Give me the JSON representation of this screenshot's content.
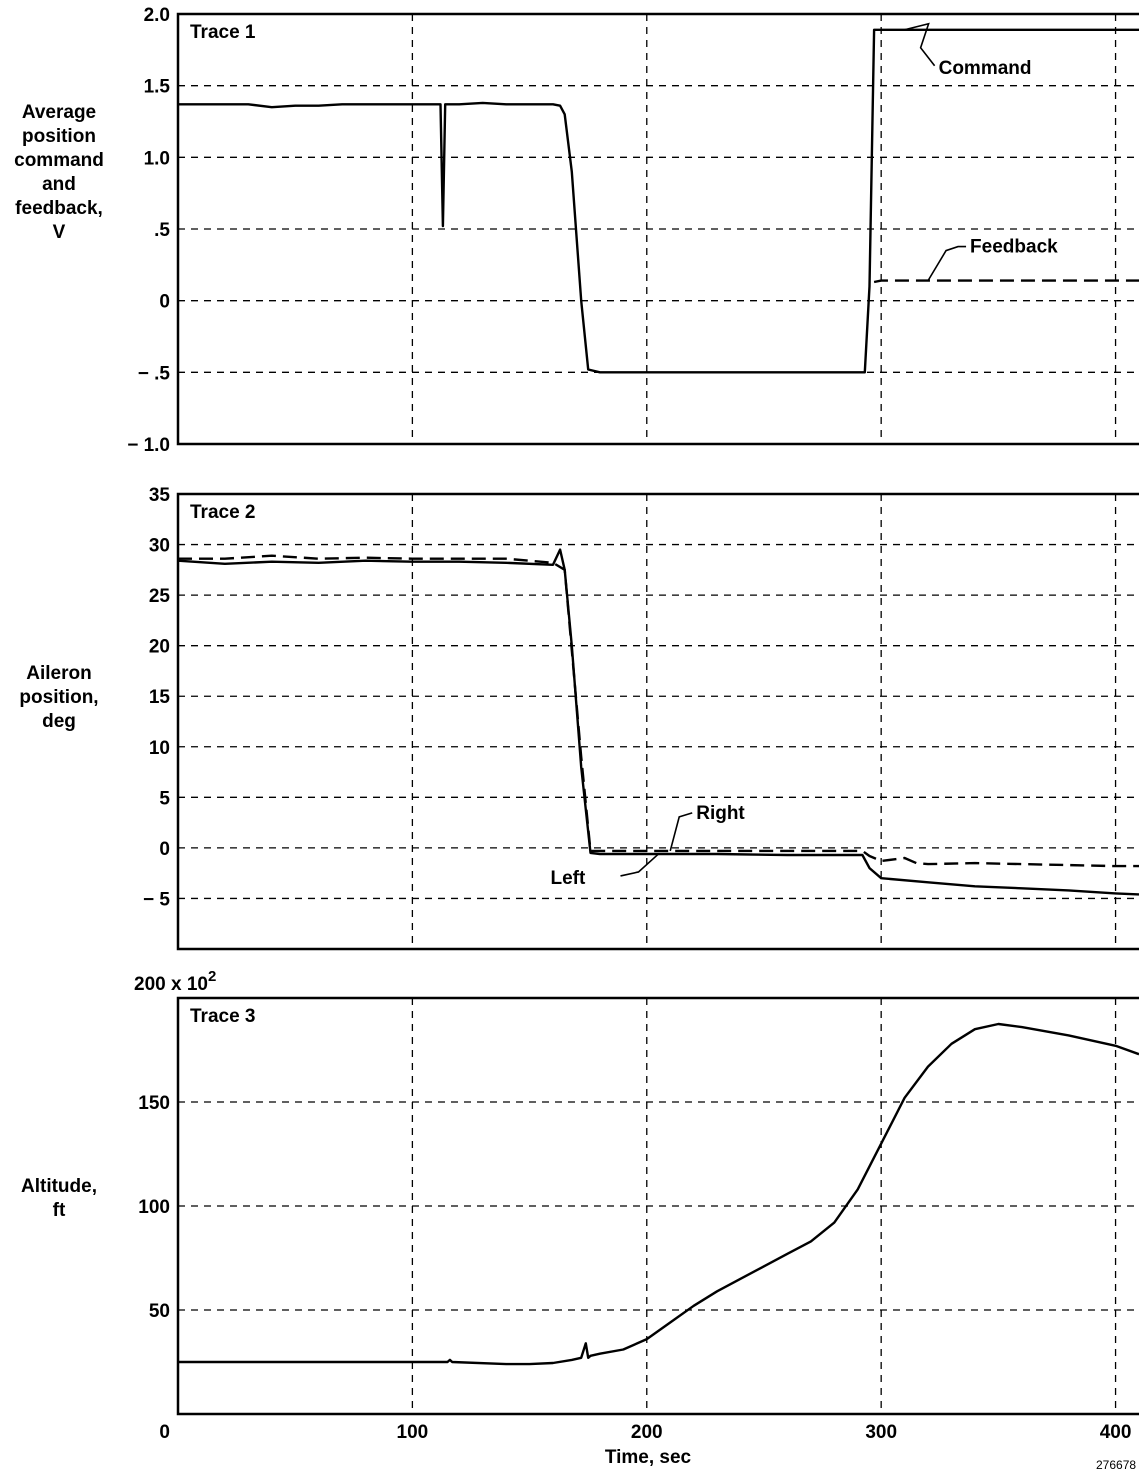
{
  "chart_data": [
    {
      "type": "line",
      "title": "Trace 1",
      "ylabel_lines": [
        "Average",
        "position",
        "command",
        "and",
        "feedback,",
        "V"
      ],
      "xlim": [
        0,
        410
      ],
      "ylim": [
        -1.0,
        2.0
      ],
      "xticks": [
        100,
        200,
        300,
        400
      ],
      "yticks": [
        -1.0,
        -0.5,
        0,
        0.5,
        1.0,
        1.5,
        2.0
      ],
      "ytick_labels": [
        "− 1.0",
        "− .5",
        "0",
        ".5",
        "1.0",
        "1.5",
        "2.0"
      ],
      "grid": true,
      "series": [
        {
          "name": "Command",
          "style": "solid",
          "color": "#000000",
          "x": [
            0,
            30,
            40,
            50,
            60,
            70,
            80,
            90,
            100,
            110,
            112,
            113,
            114,
            116,
            120,
            130,
            140,
            150,
            160,
            163,
            165,
            168,
            172,
            175,
            180,
            200,
            220,
            240,
            260,
            280,
            293,
            295,
            297,
            310,
            340,
            380,
            410
          ],
          "y": [
            1.37,
            1.37,
            1.35,
            1.36,
            1.36,
            1.37,
            1.37,
            1.37,
            1.37,
            1.37,
            1.37,
            0.52,
            1.37,
            1.37,
            1.37,
            1.38,
            1.37,
            1.37,
            1.37,
            1.36,
            1.3,
            0.9,
            0.0,
            -0.48,
            -0.5,
            -0.5,
            -0.5,
            -0.5,
            -0.5,
            -0.5,
            -0.5,
            0.1,
            1.89,
            1.89,
            1.89,
            1.89,
            1.89
          ]
        },
        {
          "name": "Feedback",
          "style": "dashed",
          "color": "#000000",
          "x": [
            297,
            300,
            320,
            340,
            360,
            380,
            400,
            410
          ],
          "y": [
            0.13,
            0.14,
            0.14,
            0.14,
            0.14,
            0.14,
            0.14,
            0.14
          ]
        }
      ],
      "annotations": [
        {
          "text": "Command",
          "series": "Command",
          "at": [
            310,
            1.89
          ]
        },
        {
          "text": "Feedback",
          "series": "Feedback",
          "at": [
            320,
            0.14
          ]
        }
      ]
    },
    {
      "type": "line",
      "title": "Trace 2",
      "ylabel_lines": [
        "Aileron",
        "position,",
        "deg"
      ],
      "xlim": [
        0,
        410
      ],
      "ylim": [
        -10,
        35
      ],
      "xticks": [
        100,
        200,
        300,
        400
      ],
      "yticks": [
        -5,
        0,
        5,
        10,
        15,
        20,
        25,
        30,
        35
      ],
      "ytick_labels": [
        "− 5",
        "0",
        "5",
        "10",
        "15",
        "20",
        "25",
        "30",
        "35"
      ],
      "grid": true,
      "series": [
        {
          "name": "Left",
          "style": "solid",
          "color": "#000000",
          "x": [
            0,
            20,
            40,
            60,
            80,
            100,
            120,
            140,
            160,
            163,
            165,
            168,
            172,
            176,
            180,
            200,
            230,
            260,
            280,
            292,
            295,
            300,
            320,
            340,
            360,
            380,
            400,
            410
          ],
          "y": [
            28.4,
            28.1,
            28.3,
            28.2,
            28.4,
            28.3,
            28.3,
            28.2,
            28.0,
            29.5,
            27.5,
            20.0,
            8.0,
            -0.5,
            -0.6,
            -0.6,
            -0.6,
            -0.7,
            -0.7,
            -0.7,
            -2.0,
            -3.0,
            -3.4,
            -3.8,
            -4.0,
            -4.2,
            -4.5,
            -4.6
          ]
        },
        {
          "name": "Right",
          "style": "dashed",
          "color": "#000000",
          "x": [
            0,
            20,
            40,
            60,
            80,
            100,
            120,
            140,
            160,
            165,
            172,
            176,
            180,
            200,
            230,
            260,
            280,
            292,
            295,
            300,
            310,
            315,
            320,
            340,
            360,
            380,
            400,
            410
          ],
          "y": [
            28.6,
            28.6,
            28.9,
            28.6,
            28.7,
            28.6,
            28.6,
            28.6,
            28.2,
            27.5,
            9.0,
            -0.3,
            -0.3,
            -0.3,
            -0.3,
            -0.3,
            -0.3,
            -0.3,
            -0.8,
            -1.3,
            -1.0,
            -1.5,
            -1.6,
            -1.5,
            -1.6,
            -1.7,
            -1.8,
            -1.8
          ]
        }
      ],
      "annotations": [
        {
          "text": "Right",
          "series": "Right",
          "at": [
            210,
            -0.3
          ]
        },
        {
          "text": "Left",
          "series": "Left",
          "at": [
            205,
            -0.6
          ]
        }
      ]
    },
    {
      "type": "line",
      "title": "Trace 3",
      "ylabel_lines": [
        "Altitude,",
        "ft"
      ],
      "scale_note": "200 x 10",
      "scale_note_exp": "2",
      "xlim": [
        0,
        410
      ],
      "ylim": [
        0,
        200
      ],
      "xticks": [
        0,
        100,
        200,
        300,
        400
      ],
      "xtick_labels": [
        "0",
        "100",
        "200",
        "300",
        "400"
      ],
      "xlabel": "Time, sec",
      "yticks": [
        50,
        100,
        150
      ],
      "ytick_labels": [
        "50",
        "100",
        "150"
      ],
      "grid": true,
      "series": [
        {
          "name": "Altitude",
          "style": "solid",
          "color": "#000000",
          "x": [
            0,
            50,
            100,
            115,
            116,
            117,
            140,
            150,
            160,
            168,
            172,
            174,
            175,
            176,
            180,
            190,
            200,
            210,
            220,
            230,
            240,
            250,
            260,
            270,
            280,
            290,
            300,
            310,
            320,
            330,
            340,
            350,
            360,
            380,
            400,
            410
          ],
          "y": [
            25,
            25,
            25,
            25,
            26,
            25,
            24,
            24,
            24.5,
            26,
            27,
            34,
            27,
            28,
            29,
            31,
            36,
            44,
            52,
            59,
            65,
            71,
            77,
            83,
            92,
            108,
            130,
            152,
            167,
            178,
            185,
            187.5,
            186,
            182,
            177,
            173
          ]
        }
      ]
    }
  ],
  "figure_id": "276678"
}
